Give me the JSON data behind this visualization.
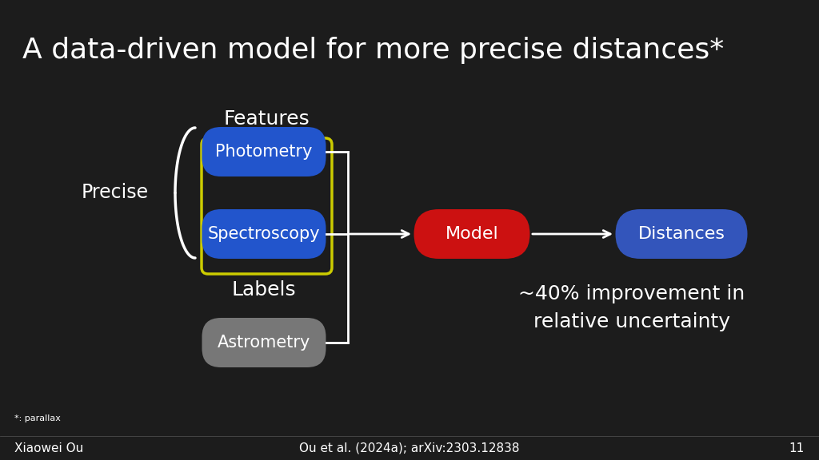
{
  "title": "A data-driven model for more precise distances*",
  "background_color": "#1c1c1c",
  "text_color": "#ffffff",
  "title_fontsize": 26,
  "photometry_label": "Photometry",
  "spectroscopy_label": "Spectroscopy",
  "astrometry_label": "Astrometry",
  "model_label": "Model",
  "distances_label": "Distances",
  "features_label": "Features",
  "labels_label": "Labels",
  "precise_label": "Precise",
  "improvement_text": "~40% improvement in\nrelative uncertainty",
  "footnote": "*: parallax",
  "bottom_left": "Xiaowei Ou",
  "bottom_center": "Ou et al. (2024a); arXiv:2303.12838",
  "bottom_right": "11",
  "yellow_border": "#cccc00",
  "arrow_color": "#ffffff",
  "box_blue": "#2255cc",
  "box_red": "#cc1111",
  "box_gray": "#777777",
  "distances_blue": "#3355bb",
  "fig_w": 10.24,
  "fig_h": 5.76
}
